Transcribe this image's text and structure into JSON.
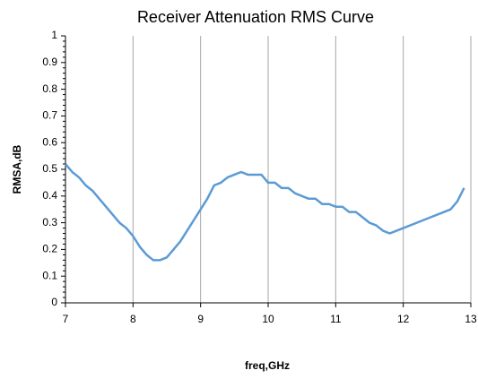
{
  "chart_data": {
    "type": "line",
    "title": "Receiver Attenuation RMS Curve",
    "xlabel": "freq,GHz",
    "ylabel": "RMSA,dB",
    "x": [
      7.0,
      7.1,
      7.2,
      7.3,
      7.4,
      7.5,
      7.6,
      7.7,
      7.8,
      7.9,
      8.0,
      8.1,
      8.2,
      8.3,
      8.4,
      8.5,
      8.6,
      8.7,
      8.8,
      8.9,
      9.0,
      9.1,
      9.2,
      9.3,
      9.4,
      9.5,
      9.6,
      9.7,
      9.8,
      9.9,
      10.0,
      10.1,
      10.2,
      10.3,
      10.4,
      10.5,
      10.6,
      10.7,
      10.8,
      10.9,
      11.0,
      11.1,
      11.2,
      11.3,
      11.4,
      11.5,
      11.6,
      11.7,
      11.8,
      11.9,
      12.0,
      12.2,
      12.4,
      12.6,
      12.7,
      12.8,
      12.9
    ],
    "series": [
      {
        "name": "RMSA",
        "color": "#5b9bd5",
        "values": [
          0.52,
          0.49,
          0.47,
          0.44,
          0.42,
          0.39,
          0.36,
          0.33,
          0.3,
          0.28,
          0.25,
          0.21,
          0.18,
          0.16,
          0.16,
          0.17,
          0.2,
          0.23,
          0.27,
          0.31,
          0.35,
          0.39,
          0.44,
          0.45,
          0.47,
          0.48,
          0.49,
          0.48,
          0.48,
          0.48,
          0.45,
          0.45,
          0.43,
          0.43,
          0.41,
          0.4,
          0.39,
          0.39,
          0.37,
          0.37,
          0.36,
          0.36,
          0.34,
          0.34,
          0.32,
          0.3,
          0.29,
          0.27,
          0.26,
          0.27,
          0.28,
          0.3,
          0.32,
          0.34,
          0.35,
          0.38,
          0.43
        ]
      }
    ],
    "xlim": [
      7,
      13
    ],
    "xticks": [
      7,
      8,
      9,
      10,
      11,
      12,
      13
    ],
    "ylim": [
      0,
      1
    ],
    "yticks": [
      0,
      0.1,
      0.2,
      0.3,
      0.4,
      0.5,
      0.6,
      0.7,
      0.8,
      0.9,
      1
    ],
    "grid": "x"
  }
}
